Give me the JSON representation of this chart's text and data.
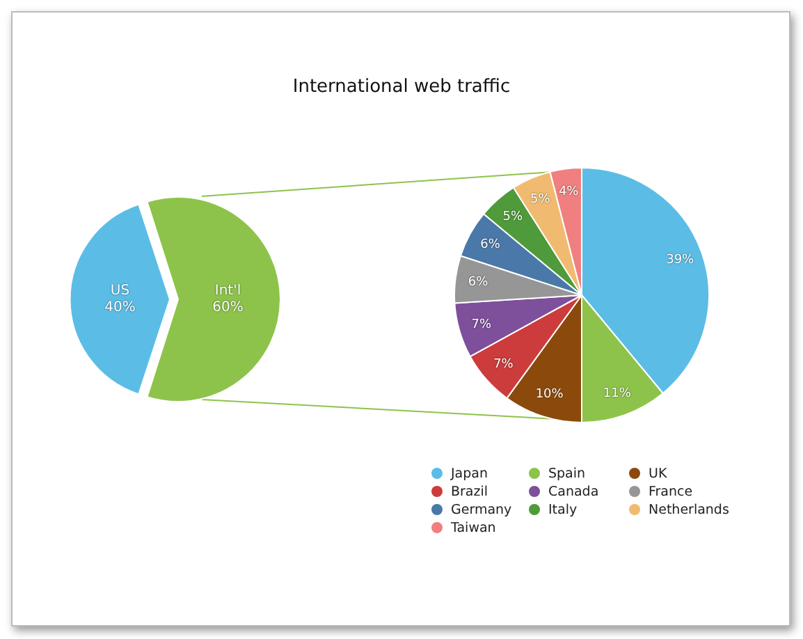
{
  "chart_data": [
    {
      "type": "pie",
      "title": "International web traffic",
      "categories": [
        "US",
        "Int'l"
      ],
      "values": [
        40,
        60
      ],
      "colors": [
        "#5bbde6",
        "#8dc34a"
      ],
      "value_labels": [
        "40%",
        "60%"
      ]
    },
    {
      "type": "pie",
      "categories": [
        "Japan",
        "Spain",
        "UK",
        "Brazil",
        "Canada",
        "France",
        "Germany",
        "Italy",
        "Netherlands",
        "Taiwan"
      ],
      "values": [
        39,
        11,
        10,
        7,
        7,
        6,
        6,
        5,
        5,
        4
      ],
      "colors": [
        "#5bbde6",
        "#8dc34a",
        "#8b4a0c",
        "#cc3c3c",
        "#7e4f9a",
        "#969696",
        "#4a78a8",
        "#4f9a3a",
        "#f0bb70",
        "#f07f7f"
      ],
      "value_labels": [
        "39%",
        "11%",
        "10%",
        "7%",
        "7%",
        "6%",
        "6%",
        "5%",
        "5%",
        "4%"
      ],
      "legend": "bottom right"
    }
  ]
}
